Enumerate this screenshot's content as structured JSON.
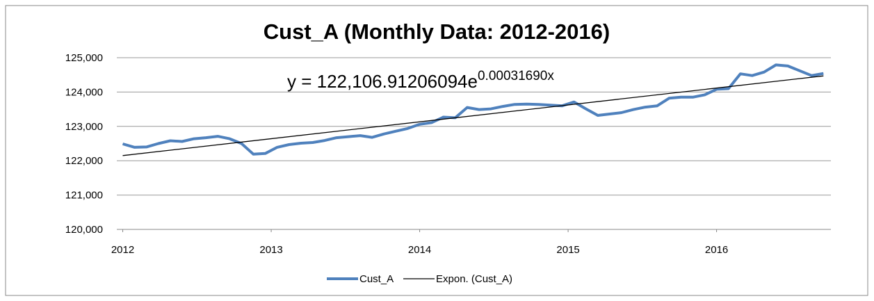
{
  "chart_data": {
    "type": "line",
    "title": "Cust_A (Monthly Data: 2012-2016)",
    "annotation": {
      "text": "y = 122,106.91206094e",
      "superscript": "0.00031690x"
    },
    "xlim": [
      2011.96,
      2016.77
    ],
    "xticks": [
      2012,
      2013,
      2014,
      2015,
      2016
    ],
    "ylim": [
      120000,
      125000
    ],
    "yticks": [
      {
        "value": 120000,
        "label": "120,000"
      },
      {
        "value": 121000,
        "label": "121,000"
      },
      {
        "value": 122000,
        "label": "122,000"
      },
      {
        "value": 123000,
        "label": "123,000"
      },
      {
        "value": 124000,
        "label": "124,000"
      },
      {
        "value": 125000,
        "label": "125,000"
      }
    ],
    "grid": true,
    "legend": "bottom",
    "series": [
      {
        "name": "Cust_A",
        "color": "#4f81bd",
        "x": [
          2012.0,
          2012.08,
          2012.16,
          2012.24,
          2012.32,
          2012.4,
          2012.48,
          2012.56,
          2012.64,
          2012.72,
          2012.8,
          2012.88,
          2012.96,
          2013.04,
          2013.12,
          2013.2,
          2013.28,
          2013.36,
          2013.44,
          2013.52,
          2013.6,
          2013.68,
          2013.76,
          2013.84,
          2013.92,
          2014.0,
          2014.08,
          2014.16,
          2014.24,
          2014.32,
          2014.4,
          2014.48,
          2014.56,
          2014.64,
          2014.72,
          2014.8,
          2014.88,
          2014.96,
          2015.04,
          2015.12,
          2015.2,
          2015.28,
          2015.36,
          2015.44,
          2015.52,
          2015.6,
          2015.68,
          2015.76,
          2015.84,
          2015.92,
          2016.0,
          2016.08,
          2016.16,
          2016.24,
          2016.32,
          2016.4,
          2016.48,
          2016.56,
          2016.64,
          2016.72
        ],
        "values": [
          122490,
          122390,
          122400,
          122500,
          122580,
          122560,
          122640,
          122670,
          122710,
          122640,
          122500,
          122190,
          122210,
          122390,
          122470,
          122510,
          122530,
          122590,
          122670,
          122700,
          122730,
          122680,
          122780,
          122860,
          122940,
          123060,
          123110,
          123270,
          123250,
          123550,
          123490,
          123510,
          123580,
          123640,
          123650,
          123640,
          123620,
          123600,
          123710,
          123510,
          123320,
          123360,
          123400,
          123490,
          123560,
          123600,
          123820,
          123850,
          123850,
          123920,
          124080,
          124100,
          124530,
          124480,
          124580,
          124790,
          124760,
          124620,
          124480,
          124540
        ]
      },
      {
        "name": "Expon. (Cust_A)",
        "color": "#000000",
        "x": [
          2012.0,
          2016.72
        ],
        "values": [
          122150,
          124470
        ]
      }
    ]
  }
}
